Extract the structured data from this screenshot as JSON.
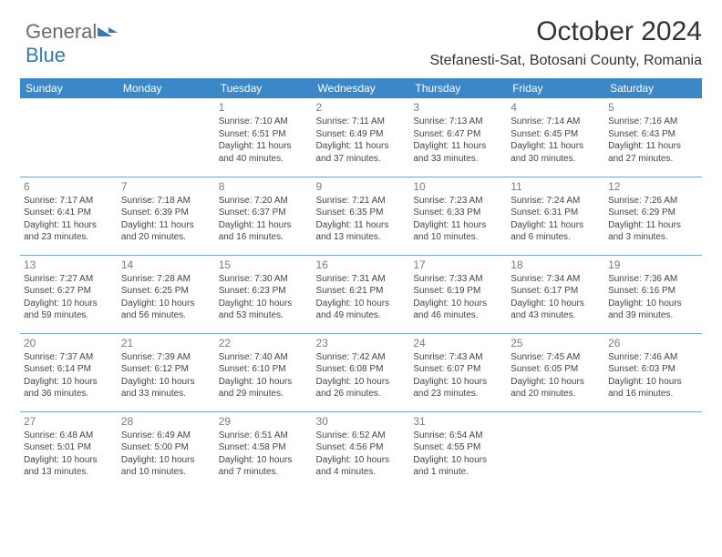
{
  "logo": {
    "text1": "General",
    "text2": "Blue"
  },
  "header": {
    "title": "October 2024",
    "subtitle": "Stefanesti-Sat, Botosani County, Romania"
  },
  "colors": {
    "header_bg": "#3c87c7",
    "header_fg": "#ffffff",
    "row_border": "#7aa8cf",
    "daynum": "#7b7b7b",
    "body_text": "#444444",
    "logo_gray": "#6b6b6b",
    "logo_blue": "#2f7bbf"
  },
  "weekdays": [
    "Sunday",
    "Monday",
    "Tuesday",
    "Wednesday",
    "Thursday",
    "Friday",
    "Saturday"
  ],
  "weeks": [
    [
      null,
      null,
      {
        "n": "1",
        "sr": "7:10 AM",
        "ss": "6:51 PM",
        "dl": "11 hours and 40 minutes."
      },
      {
        "n": "2",
        "sr": "7:11 AM",
        "ss": "6:49 PM",
        "dl": "11 hours and 37 minutes."
      },
      {
        "n": "3",
        "sr": "7:13 AM",
        "ss": "6:47 PM",
        "dl": "11 hours and 33 minutes."
      },
      {
        "n": "4",
        "sr": "7:14 AM",
        "ss": "6:45 PM",
        "dl": "11 hours and 30 minutes."
      },
      {
        "n": "5",
        "sr": "7:16 AM",
        "ss": "6:43 PM",
        "dl": "11 hours and 27 minutes."
      }
    ],
    [
      {
        "n": "6",
        "sr": "7:17 AM",
        "ss": "6:41 PM",
        "dl": "11 hours and 23 minutes."
      },
      {
        "n": "7",
        "sr": "7:18 AM",
        "ss": "6:39 PM",
        "dl": "11 hours and 20 minutes."
      },
      {
        "n": "8",
        "sr": "7:20 AM",
        "ss": "6:37 PM",
        "dl": "11 hours and 16 minutes."
      },
      {
        "n": "9",
        "sr": "7:21 AM",
        "ss": "6:35 PM",
        "dl": "11 hours and 13 minutes."
      },
      {
        "n": "10",
        "sr": "7:23 AM",
        "ss": "6:33 PM",
        "dl": "11 hours and 10 minutes."
      },
      {
        "n": "11",
        "sr": "7:24 AM",
        "ss": "6:31 PM",
        "dl": "11 hours and 6 minutes."
      },
      {
        "n": "12",
        "sr": "7:26 AM",
        "ss": "6:29 PM",
        "dl": "11 hours and 3 minutes."
      }
    ],
    [
      {
        "n": "13",
        "sr": "7:27 AM",
        "ss": "6:27 PM",
        "dl": "10 hours and 59 minutes."
      },
      {
        "n": "14",
        "sr": "7:28 AM",
        "ss": "6:25 PM",
        "dl": "10 hours and 56 minutes."
      },
      {
        "n": "15",
        "sr": "7:30 AM",
        "ss": "6:23 PM",
        "dl": "10 hours and 53 minutes."
      },
      {
        "n": "16",
        "sr": "7:31 AM",
        "ss": "6:21 PM",
        "dl": "10 hours and 49 minutes."
      },
      {
        "n": "17",
        "sr": "7:33 AM",
        "ss": "6:19 PM",
        "dl": "10 hours and 46 minutes."
      },
      {
        "n": "18",
        "sr": "7:34 AM",
        "ss": "6:17 PM",
        "dl": "10 hours and 43 minutes."
      },
      {
        "n": "19",
        "sr": "7:36 AM",
        "ss": "6:16 PM",
        "dl": "10 hours and 39 minutes."
      }
    ],
    [
      {
        "n": "20",
        "sr": "7:37 AM",
        "ss": "6:14 PM",
        "dl": "10 hours and 36 minutes."
      },
      {
        "n": "21",
        "sr": "7:39 AM",
        "ss": "6:12 PM",
        "dl": "10 hours and 33 minutes."
      },
      {
        "n": "22",
        "sr": "7:40 AM",
        "ss": "6:10 PM",
        "dl": "10 hours and 29 minutes."
      },
      {
        "n": "23",
        "sr": "7:42 AM",
        "ss": "6:08 PM",
        "dl": "10 hours and 26 minutes."
      },
      {
        "n": "24",
        "sr": "7:43 AM",
        "ss": "6:07 PM",
        "dl": "10 hours and 23 minutes."
      },
      {
        "n": "25",
        "sr": "7:45 AM",
        "ss": "6:05 PM",
        "dl": "10 hours and 20 minutes."
      },
      {
        "n": "26",
        "sr": "7:46 AM",
        "ss": "6:03 PM",
        "dl": "10 hours and 16 minutes."
      }
    ],
    [
      {
        "n": "27",
        "sr": "6:48 AM",
        "ss": "5:01 PM",
        "dl": "10 hours and 13 minutes."
      },
      {
        "n": "28",
        "sr": "6:49 AM",
        "ss": "5:00 PM",
        "dl": "10 hours and 10 minutes."
      },
      {
        "n": "29",
        "sr": "6:51 AM",
        "ss": "4:58 PM",
        "dl": "10 hours and 7 minutes."
      },
      {
        "n": "30",
        "sr": "6:52 AM",
        "ss": "4:56 PM",
        "dl": "10 hours and 4 minutes."
      },
      {
        "n": "31",
        "sr": "6:54 AM",
        "ss": "4:55 PM",
        "dl": "10 hours and 1 minute."
      },
      null,
      null
    ]
  ],
  "labels": {
    "sunrise": "Sunrise:",
    "sunset": "Sunset:",
    "daylight": "Daylight:"
  }
}
